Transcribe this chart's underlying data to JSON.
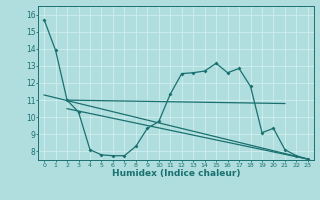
{
  "xlabel": "Humidex (Indice chaleur)",
  "xlim": [
    -0.5,
    23.5
  ],
  "ylim": [
    7.5,
    16.5
  ],
  "yticks": [
    8,
    9,
    10,
    11,
    12,
    13,
    14,
    15,
    16
  ],
  "xticks": [
    0,
    1,
    2,
    3,
    4,
    5,
    6,
    7,
    8,
    9,
    10,
    11,
    12,
    13,
    14,
    15,
    16,
    17,
    18,
    19,
    20,
    21,
    22,
    23
  ],
  "bg_color": "#b0dede",
  "grid_color": "#d0eeee",
  "line_color": "#1a7070",
  "curve1_x": [
    0,
    1,
    2,
    3,
    4,
    5,
    6,
    7,
    8,
    9,
    10,
    11,
    12,
    13,
    14,
    15,
    16,
    17,
    18,
    19,
    20,
    21,
    22,
    23
  ],
  "curve1_y": [
    15.7,
    13.9,
    11.0,
    10.3,
    8.1,
    7.8,
    7.75,
    7.75,
    8.3,
    9.35,
    9.75,
    11.35,
    12.55,
    12.6,
    12.7,
    13.15,
    12.6,
    12.85,
    11.8,
    9.1,
    9.35,
    8.1,
    7.75,
    7.55
  ],
  "flat_line_x": [
    2,
    21
  ],
  "flat_line_y": [
    11.0,
    10.8
  ],
  "diag_line_x": [
    0,
    23
  ],
  "diag_line_y": [
    11.3,
    7.55
  ],
  "diag_line2_x": [
    2,
    23
  ],
  "diag_line2_y": [
    10.5,
    7.55
  ]
}
